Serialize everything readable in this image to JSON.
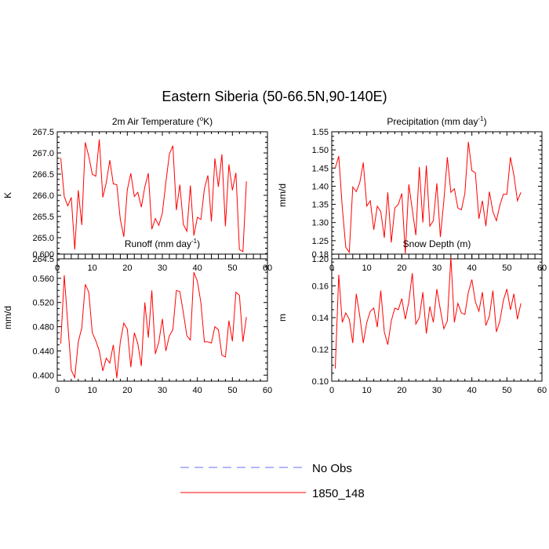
{
  "title": "Eastern Siberia (50-66.5N,90-140E)",
  "legend": [
    {
      "label": "No Obs",
      "style": "dashed",
      "color": "#6b6bff"
    },
    {
      "label": "1850_148",
      "style": "solid",
      "color": "#ff0000"
    }
  ],
  "chart_data": [
    {
      "type": "line",
      "title": "2m Air Temperature (°K)",
      "title_main": "2m Air Temperature (",
      "title_sup": "o",
      "title_tail": "K)",
      "ylabel": "K",
      "xlim": [
        0,
        60
      ],
      "ylim": [
        264.5,
        267.5
      ],
      "xticks": [
        0,
        10,
        20,
        30,
        40,
        50,
        60
      ],
      "yticks": [
        264.5,
        265.0,
        265.5,
        266.0,
        266.5,
        267.0,
        267.5
      ],
      "ytick_labels": [
        "264.5",
        "265.0",
        "265.5",
        "266.0",
        "266.5",
        "267.0",
        "267.5"
      ],
      "series": [
        {
          "name": "1850_148",
          "color": "#ff0000",
          "x": [
            1,
            2,
            3,
            4,
            5,
            6,
            7,
            8,
            9,
            10,
            11,
            12,
            13,
            14,
            15,
            16,
            17,
            18,
            19,
            20,
            21,
            22,
            23,
            24,
            25,
            26,
            27,
            28,
            29,
            30,
            31,
            32,
            33,
            34,
            35,
            36,
            37,
            38,
            39,
            40,
            41,
            42,
            43,
            44,
            45,
            46,
            47,
            48,
            49,
            50,
            51,
            52,
            53,
            54
          ],
          "y": [
            266.88,
            265.97,
            265.75,
            265.95,
            264.72,
            266.12,
            265.3,
            267.25,
            266.92,
            266.5,
            266.45,
            267.32,
            265.95,
            266.3,
            266.83,
            266.27,
            266.25,
            265.43,
            265.02,
            266.13,
            266.52,
            265.97,
            266.07,
            265.72,
            266.2,
            266.52,
            265.2,
            265.45,
            265.29,
            265.58,
            266.3,
            266.97,
            267.17,
            265.65,
            266.25,
            265.31,
            265.15,
            266.23,
            265.05,
            265.48,
            265.43,
            266.15,
            266.47,
            265.38,
            266.87,
            266.2,
            266.97,
            265.27,
            266.73,
            266.12,
            266.53,
            264.72,
            264.67,
            266.33
          ]
        }
      ]
    },
    {
      "type": "line",
      "title": "Precipitation (mm day-1)",
      "title_main": "Precipitation (mm day",
      "title_sup": "-1",
      "title_tail": ")",
      "ylabel": "mm/d",
      "xlim": [
        0,
        60
      ],
      "ylim": [
        1.2,
        1.55
      ],
      "xticks": [
        0,
        10,
        20,
        30,
        40,
        50,
        60
      ],
      "yticks": [
        1.2,
        1.25,
        1.3,
        1.35,
        1.4,
        1.45,
        1.5,
        1.55
      ],
      "ytick_labels": [
        "1.20",
        "1.25",
        "1.30",
        "1.35",
        "1.40",
        "1.45",
        "1.50",
        "1.55"
      ],
      "series": [
        {
          "name": "1850_148",
          "color": "#ff0000",
          "x": [
            1,
            2,
            3,
            4,
            5,
            6,
            7,
            8,
            9,
            10,
            11,
            12,
            13,
            14,
            15,
            16,
            17,
            18,
            19,
            20,
            21,
            22,
            23,
            24,
            25,
            26,
            27,
            28,
            29,
            30,
            31,
            32,
            33,
            34,
            35,
            36,
            37,
            38,
            39,
            40,
            41,
            42,
            43,
            44,
            45,
            46,
            47,
            48,
            49,
            50,
            51,
            52,
            53,
            54
          ],
          "y": [
            1.45,
            1.483,
            1.342,
            1.232,
            1.218,
            1.398,
            1.385,
            1.41,
            1.465,
            1.345,
            1.36,
            1.28,
            1.345,
            1.33,
            1.258,
            1.383,
            1.245,
            1.34,
            1.35,
            1.38,
            1.215,
            1.405,
            1.335,
            1.265,
            1.453,
            1.3,
            1.457,
            1.29,
            1.305,
            1.408,
            1.26,
            1.36,
            1.48,
            1.383,
            1.393,
            1.34,
            1.335,
            1.38,
            1.522,
            1.443,
            1.437,
            1.31,
            1.36,
            1.29,
            1.385,
            1.33,
            1.305,
            1.348,
            1.378,
            1.378,
            1.48,
            1.43,
            1.36,
            1.383
          ]
        }
      ]
    },
    {
      "type": "line",
      "title": "Runoff (mm day-1)",
      "title_main": "Runoff (mm day",
      "title_sup": "-1",
      "title_tail": ")",
      "ylabel": "mm/d",
      "xlim": [
        0,
        60
      ],
      "ylim": [
        0.39,
        0.6
      ],
      "xticks": [
        0,
        10,
        20,
        30,
        40,
        50,
        60
      ],
      "yticks": [
        0.4,
        0.44,
        0.48,
        0.52,
        0.56,
        0.6
      ],
      "ytick_labels": [
        "0.400",
        "0.440",
        "0.480",
        "0.520",
        "0.560",
        "0.600"
      ],
      "series": [
        {
          "name": "1850_148",
          "color": "#ff0000",
          "x": [
            1,
            2,
            3,
            4,
            5,
            6,
            7,
            8,
            9,
            10,
            11,
            12,
            13,
            14,
            15,
            16,
            17,
            18,
            19,
            20,
            21,
            22,
            23,
            24,
            25,
            26,
            27,
            28,
            29,
            30,
            31,
            32,
            33,
            34,
            35,
            36,
            37,
            38,
            39,
            40,
            41,
            42,
            43,
            44,
            45,
            46,
            47,
            48,
            49,
            50,
            51,
            52,
            53,
            54
          ],
          "y": [
            0.452,
            0.565,
            0.485,
            0.408,
            0.396,
            0.455,
            0.478,
            0.55,
            0.537,
            0.47,
            0.457,
            0.44,
            0.407,
            0.428,
            0.42,
            0.45,
            0.395,
            0.455,
            0.486,
            0.476,
            0.413,
            0.47,
            0.452,
            0.415,
            0.52,
            0.462,
            0.54,
            0.435,
            0.455,
            0.493,
            0.44,
            0.465,
            0.475,
            0.54,
            0.538,
            0.503,
            0.465,
            0.458,
            0.57,
            0.555,
            0.52,
            0.455,
            0.455,
            0.453,
            0.48,
            0.475,
            0.433,
            0.43,
            0.49,
            0.456,
            0.537,
            0.532,
            0.455,
            0.496
          ]
        }
      ]
    },
    {
      "type": "line",
      "title": "Snow Depth (m)",
      "title_main": "Snow Depth (m)",
      "title_sup": "",
      "title_tail": "",
      "ylabel": "m",
      "xlim": [
        0,
        60
      ],
      "ylim": [
        0.1,
        0.18
      ],
      "xticks": [
        0,
        10,
        20,
        30,
        40,
        50,
        60
      ],
      "yticks": [
        0.1,
        0.12,
        0.14,
        0.16,
        0.18
      ],
      "ytick_labels": [
        "0.10",
        "0.12",
        "0.14",
        "0.16",
        "0.18"
      ],
      "series": [
        {
          "name": "1850_148",
          "color": "#ff0000",
          "x": [
            1,
            2,
            3,
            4,
            5,
            6,
            7,
            8,
            9,
            10,
            11,
            12,
            13,
            14,
            15,
            16,
            17,
            18,
            19,
            20,
            21,
            22,
            23,
            24,
            25,
            26,
            27,
            28,
            29,
            30,
            31,
            32,
            33,
            34,
            35,
            36,
            37,
            38,
            39,
            40,
            41,
            42,
            43,
            44,
            45,
            46,
            47,
            48,
            49,
            50,
            51,
            52,
            53,
            54
          ],
          "y": [
            0.108,
            0.167,
            0.137,
            0.143,
            0.139,
            0.124,
            0.155,
            0.141,
            0.124,
            0.137,
            0.144,
            0.146,
            0.134,
            0.157,
            0.131,
            0.123,
            0.138,
            0.146,
            0.145,
            0.152,
            0.139,
            0.15,
            0.168,
            0.136,
            0.14,
            0.156,
            0.13,
            0.147,
            0.137,
            0.158,
            0.145,
            0.133,
            0.138,
            0.178,
            0.137,
            0.149,
            0.143,
            0.142,
            0.156,
            0.164,
            0.15,
            0.144,
            0.156,
            0.135,
            0.141,
            0.157,
            0.131,
            0.138,
            0.151,
            0.158,
            0.145,
            0.155,
            0.139,
            0.149
          ]
        }
      ]
    }
  ]
}
